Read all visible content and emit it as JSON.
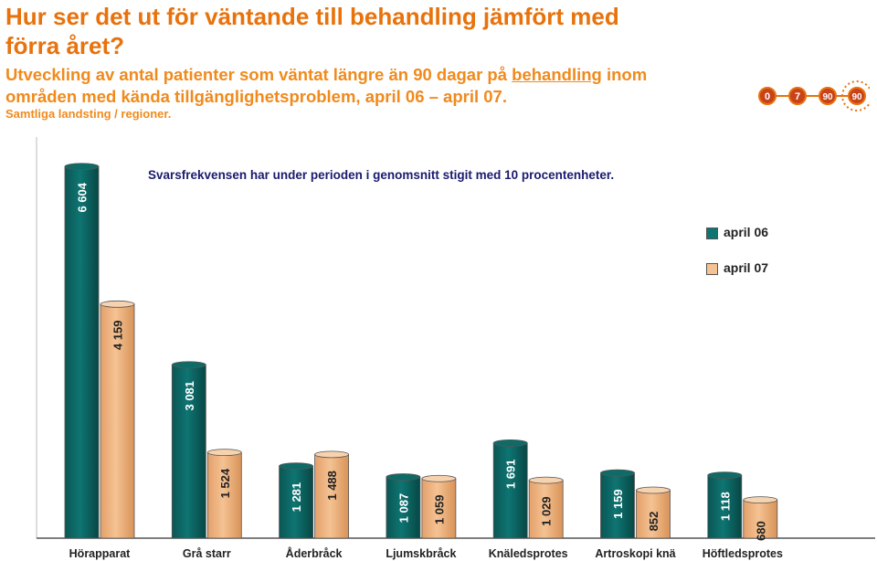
{
  "header": {
    "title": "Hur ser det ut för väntande till behandling jämfört med förra året?",
    "subtitle_part1": "Utveckling av antal patienter som väntat längre än 90 dagar på ",
    "subtitle_underlined": "behandling",
    "subtitle_part2": " inom områden med kända tillgänglighetsproblem, april 06 – april 07.",
    "source": "Samtliga landsting / regioner."
  },
  "note": "Svarsfrekvensen har under perioden i genomsnitt stigit med 10 procentenheter.",
  "logo": {
    "circles": [
      "0",
      "7",
      "90",
      "90"
    ],
    "colors": {
      "ring": "#e8720c",
      "fill": "#c8421a",
      "text": "#ffffff"
    }
  },
  "colors": {
    "april06": "#0e7572",
    "april07": "#f5c293"
  },
  "chart_data": {
    "type": "bar",
    "categories": [
      "Hörapparat",
      "Grå starr",
      "Åderbråck",
      "Ljumskbråck",
      "Knäledsprotes",
      "Artroskopi knä",
      "Höftledsprotes"
    ],
    "series": [
      {
        "name": "april 06",
        "values": [
          6604,
          3081,
          1281,
          1087,
          1691,
          1159,
          1118
        ],
        "labels": [
          "6 604",
          "3 081",
          "1 281",
          "1 087",
          "1 691",
          "1 159",
          "1 118"
        ]
      },
      {
        "name": "april 07",
        "values": [
          4159,
          1524,
          1488,
          1059,
          1029,
          852,
          680
        ],
        "labels": [
          "4 159",
          "1 524",
          "1 488",
          "1 059",
          "1 029",
          "852",
          "680"
        ]
      }
    ],
    "ylim": [
      0,
      6900
    ],
    "grid": false,
    "legend_position": "right"
  }
}
